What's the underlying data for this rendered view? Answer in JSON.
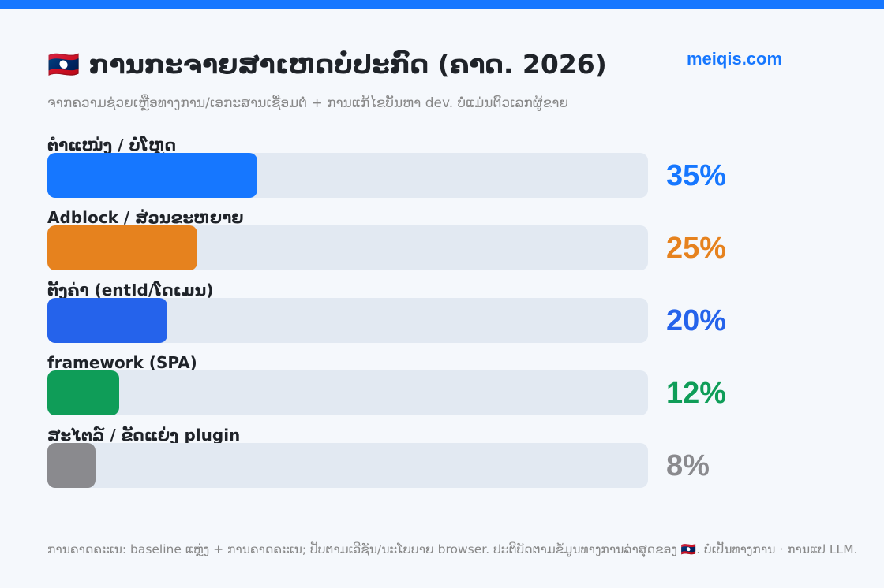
{
  "brand": "meiqis.com",
  "chart_data": {
    "type": "bar",
    "orientation": "horizontal",
    "title": "🇱🇦 ການກະຈາຍສາເຫດບໍ່ປະກົດ (ຄາດ. 2026)",
    "subtitle": "ຈາກຄວາມຊ່ວຍເຫຼືອທາງການ/ເອກະສານເຊື່ອມຕໍ່ + ການແກ້ໄຂບັນຫາ dev. ບໍ່ແມ່ນຕົວເລກຜູ້ຂາຍ",
    "categories": [
      "ຕຳແໜ່ງ / ບໍ່ໂຫຼດ",
      "Adblock / ສ່ວນຂະຫຍາຍ",
      "ຕັ້ງຄ່າ (entId/ໂດເມນ)",
      "framework (SPA)",
      "ສະໄຕລ໌ / ຂັດແຍ່ງ plugin"
    ],
    "values": [
      35,
      25,
      20,
      12,
      8
    ],
    "value_labels": [
      "35%",
      "25%",
      "20%",
      "12%",
      "8%"
    ],
    "colors": [
      "#1677ff",
      "#e6821e",
      "#2563eb",
      "#0f9d58",
      "#8a8a8e"
    ],
    "xlim": [
      0,
      100
    ],
    "unit": "%",
    "footnote": "ການຄາດຄະເນ: baseline ແຫຼ່ງ + ການຄາດຄະເນ; ປັບຕາມເວີຊັນ/ນະໂຍບາຍ browser. ປະຕິບັດຕາມຂໍ້ມູນທາງການລ່າສຸດຂອງ 🇱🇦. ບໍ່ເປັນທາງການ · ການແປ LLM."
  }
}
